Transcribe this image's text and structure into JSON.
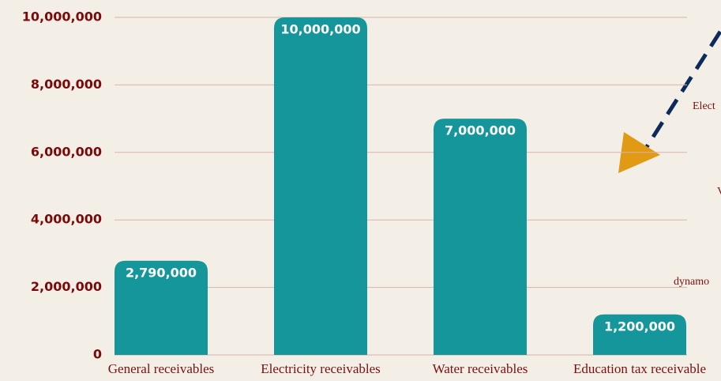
{
  "chart_data": {
    "type": "bar",
    "categories": [
      "General receivables",
      "Electricity receivables",
      "Water receivables",
      "Education tax receivable"
    ],
    "values": [
      2790000,
      10000000,
      7000000,
      1200000
    ],
    "value_labels": [
      "2,790,000",
      "10,000,000",
      "7,000,000",
      "1,200,000"
    ],
    "color": "#14969a",
    "ylim": [
      0,
      10000000
    ],
    "yticks": [
      0,
      {
        "value": 2000000,
        "label": "2,000,000"
      },
      {
        "value": 4000000,
        "label": "4,000,000"
      },
      {
        "value": 6000000,
        "label": "6,000,000"
      },
      {
        "value": 8000000,
        "label": "8,000,000"
      },
      {
        "value": 10000000,
        "label": "10,000,000"
      }
    ],
    "grid": true,
    "annotations": [
      "Elect",
      "V",
      "dynamo"
    ]
  }
}
